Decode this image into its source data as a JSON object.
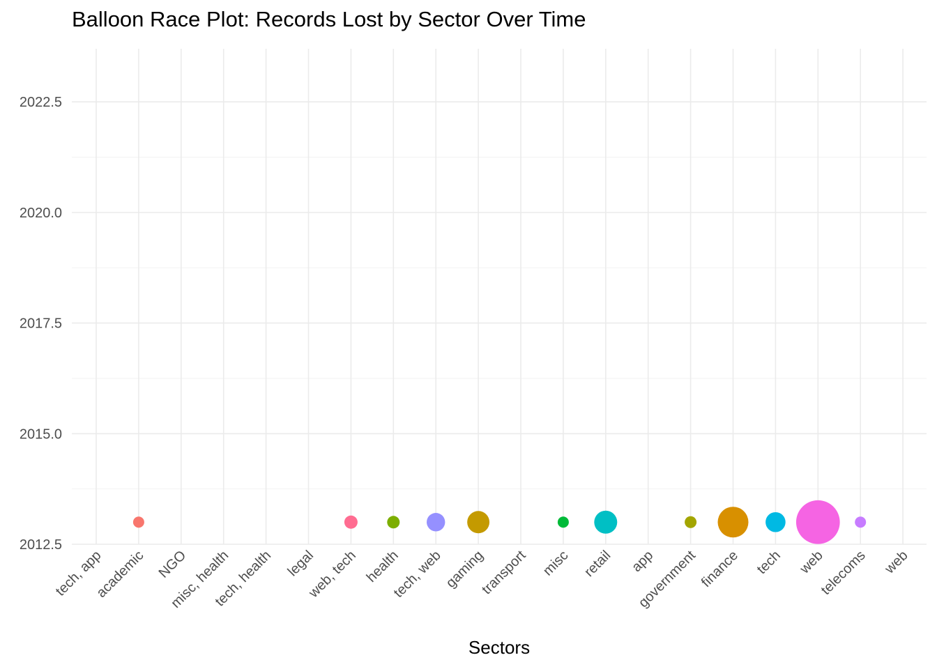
{
  "chart_data": {
    "type": "scatter",
    "title": "Balloon Race Plot: Records Lost by Sector Over Time",
    "xlabel": "Sectors",
    "ylabel": "",
    "categories": [
      "tech, app",
      "academic",
      "NGO",
      "misc, health",
      "tech, health",
      "legal",
      "web, tech",
      "health",
      "tech, web",
      "gaming",
      "transport",
      "misc",
      "retail",
      "app",
      "government",
      "finance",
      "tech",
      "web",
      "telecoms",
      "web"
    ],
    "ylim": [
      2012.5,
      2023.7
    ],
    "yticks": [
      2012.5,
      2015.0,
      2017.5,
      2020.0,
      2022.5
    ],
    "ytick_labels": [
      "2012.5",
      "2015.0",
      "2017.5",
      "2020.0",
      "2022.5"
    ],
    "grid": true,
    "legend": "none",
    "points": [
      {
        "category": "academic",
        "year": 2013,
        "size": 16,
        "color": "#F8766D"
      },
      {
        "category": "web, tech",
        "year": 2013,
        "size": 19,
        "color": "#FF6C91"
      },
      {
        "category": "health",
        "year": 2013,
        "size": 18,
        "color": "#7CAE00"
      },
      {
        "category": "tech, web",
        "year": 2013,
        "size": 24,
        "color": "#9590FF"
      },
      {
        "category": "gaming",
        "year": 2013,
        "size": 29,
        "color": "#C49A00"
      },
      {
        "category": "misc",
        "year": 2013,
        "size": 16,
        "color": "#00BA38"
      },
      {
        "category": "retail",
        "year": 2013,
        "size": 30,
        "color": "#00BFC4"
      },
      {
        "category": "government",
        "year": 2013,
        "size": 17,
        "color": "#A3A500"
      },
      {
        "category": "finance",
        "year": 2013,
        "size": 40,
        "color": "#D89000"
      },
      {
        "category": "tech",
        "year": 2013,
        "size": 26,
        "color": "#00B9E3"
      },
      {
        "category": "web",
        "year": 2013,
        "size": 57,
        "color": "#F564E3"
      },
      {
        "category": "telecoms",
        "year": 2013,
        "size": 16,
        "color": "#C77CFF"
      }
    ]
  }
}
